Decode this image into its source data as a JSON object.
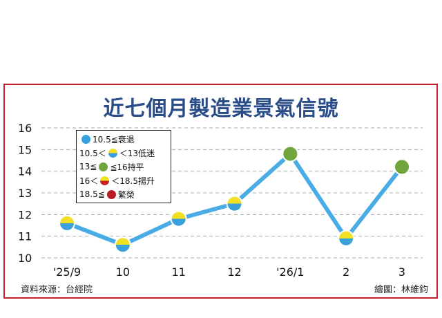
{
  "header": {
    "title": "近七個月製造業景氣信號"
  },
  "footer": {
    "source": "資料來源：台經院",
    "credit": "繪圖：林維鈞"
  },
  "legend": [
    {
      "before": "",
      "after": "10.5≦衰退",
      "colors": [
        "#3aa0dc",
        "#3aa0dc"
      ]
    },
    {
      "before": "10.5＜",
      "after": "＜13低迷",
      "colors": [
        "#f2e024",
        "#3aa0dc"
      ]
    },
    {
      "before": "13≦",
      "after": "≦16持平",
      "colors": [
        "#6fa53a",
        "#6fa53a"
      ]
    },
    {
      "before": "16＜",
      "after": "＜18.5揚升",
      "colors": [
        "#f2e024",
        "#c8202a"
      ]
    },
    {
      "before": "18.5≦",
      "after": "繁榮",
      "colors": [
        "#b81c24",
        "#b81c24"
      ]
    }
  ],
  "chart_data": {
    "type": "line",
    "categories": [
      "'25/9",
      "10",
      "11",
      "12",
      "'26/1",
      "2",
      "3"
    ],
    "values": [
      11.6,
      10.6,
      11.8,
      12.5,
      14.8,
      10.9,
      14.2
    ],
    "signal": [
      "低迷",
      "低迷",
      "低迷",
      "低迷",
      "持平",
      "低迷",
      "持平"
    ],
    "ylim": [
      10,
      16
    ],
    "yticks": [
      "10",
      "11",
      "12",
      "13",
      "14",
      "15",
      "16"
    ],
    "grid": true,
    "legend_position": "top-left",
    "colors": {
      "line": "#49ace4",
      "blue": "#3aa0dc",
      "yellow": "#f2e024",
      "green": "#6fa53a",
      "grid": "#aaaaaa"
    }
  }
}
